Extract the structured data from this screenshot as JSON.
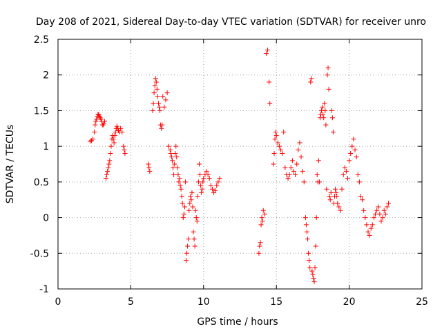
{
  "chart_data": {
    "type": "scatter",
    "title": "Day 208 of 2021, Sidereal Day-to-day VTEC variation (SDTVAR) for receiver unro",
    "xlabel": "GPS time / hours",
    "ylabel": "SDTVAR / TECUs",
    "xlim": [
      0,
      25
    ],
    "ylim": [
      -1,
      2.5
    ],
    "xticks": [
      0,
      5,
      10,
      15,
      20,
      25
    ],
    "xtick_labels": [
      "0",
      "5",
      "10",
      "15",
      "20",
      "25"
    ],
    "yticks": [
      -1,
      -0.5,
      0,
      0.5,
      1,
      1.5,
      2,
      2.5
    ],
    "ytick_labels": [
      "-1",
      "-0.5",
      "0",
      "0.5",
      "1",
      "1.5",
      "2",
      "2.5"
    ],
    "grid": true,
    "marker": "plus",
    "color": "#ff0000",
    "series": [
      {
        "name": "SDTVAR",
        "x": [
          2.2,
          2.3,
          2.4,
          2.5,
          2.55,
          2.6,
          2.65,
          2.7,
          2.75,
          2.8,
          2.85,
          2.9,
          2.95,
          3.0,
          3.05,
          3.1,
          3.15,
          3.2,
          3.3,
          3.35,
          3.4,
          3.45,
          3.5,
          3.55,
          3.6,
          3.65,
          3.7,
          3.75,
          3.8,
          3.85,
          3.9,
          3.95,
          4.0,
          4.05,
          4.1,
          4.15,
          4.2,
          4.3,
          4.4,
          4.5,
          4.55,
          4.6,
          6.2,
          6.25,
          6.3,
          6.5,
          6.55,
          6.6,
          6.65,
          6.7,
          6.75,
          6.8,
          6.85,
          6.9,
          6.95,
          7.0,
          7.05,
          7.1,
          7.15,
          7.2,
          7.3,
          7.4,
          7.5,
          7.6,
          7.7,
          7.75,
          7.8,
          7.85,
          7.9,
          7.95,
          8.0,
          8.05,
          8.1,
          8.15,
          8.2,
          8.25,
          8.3,
          8.35,
          8.4,
          8.45,
          8.5,
          8.55,
          8.6,
          8.65,
          8.7,
          8.75,
          8.8,
          8.85,
          8.9,
          8.95,
          9.0,
          9.05,
          9.1,
          9.15,
          9.2,
          9.25,
          9.3,
          9.35,
          9.4,
          9.45,
          9.5,
          9.55,
          9.6,
          9.65,
          9.7,
          9.75,
          9.8,
          9.85,
          9.9,
          9.95,
          10.0,
          10.1,
          10.2,
          10.3,
          10.4,
          10.5,
          10.6,
          10.7,
          10.8,
          10.9,
          11.0,
          11.1,
          13.8,
          13.85,
          13.9,
          13.95,
          14.0,
          14.05,
          14.1,
          14.2,
          14.3,
          14.4,
          14.5,
          14.55,
          14.8,
          14.85,
          14.9,
          14.95,
          15.0,
          15.1,
          15.2,
          15.3,
          15.4,
          15.5,
          15.6,
          15.7,
          15.8,
          15.9,
          16.0,
          16.1,
          16.2,
          16.3,
          16.4,
          16.5,
          16.6,
          16.7,
          16.8,
          16.9,
          17.0,
          17.05,
          17.1,
          17.15,
          17.2,
          17.25,
          17.3,
          17.35,
          17.4,
          17.45,
          17.5,
          17.55,
          17.6,
          17.65,
          17.7,
          17.75,
          17.8,
          17.85,
          17.9,
          17.95,
          18.0,
          18.05,
          18.1,
          18.15,
          18.2,
          18.25,
          18.3,
          18.35,
          18.4,
          18.45,
          18.5,
          18.55,
          18.6,
          18.65,
          18.7,
          18.75,
          18.8,
          18.85,
          18.9,
          18.95,
          19.0,
          19.05,
          19.1,
          19.15,
          19.2,
          19.3,
          19.4,
          19.5,
          19.6,
          19.7,
          19.8,
          19.9,
          20.0,
          20.1,
          20.2,
          20.3,
          20.4,
          20.5,
          20.6,
          20.7,
          20.8,
          20.9,
          21.0,
          21.1,
          21.2,
          21.3,
          21.4,
          21.5,
          21.6,
          21.7,
          21.8,
          21.9,
          22.0,
          22.1,
          22.2,
          22.3,
          22.4,
          22.5,
          22.6,
          22.7
        ],
        "y": [
          1.07,
          1.08,
          1.1,
          1.2,
          1.3,
          1.35,
          1.38,
          1.42,
          1.45,
          1.44,
          1.42,
          1.4,
          1.38,
          1.35,
          1.3,
          1.3,
          1.32,
          1.35,
          0.55,
          0.6,
          0.65,
          0.7,
          0.75,
          0.8,
          0.9,
          1.0,
          1.1,
          1.15,
          1.1,
          1.05,
          1.15,
          1.2,
          1.25,
          1.28,
          1.25,
          1.22,
          1.2,
          1.25,
          1.2,
          1.0,
          0.95,
          0.9,
          0.75,
          0.7,
          0.65,
          1.5,
          1.6,
          1.75,
          1.85,
          1.95,
          1.9,
          1.8,
          1.7,
          1.6,
          1.55,
          1.5,
          1.3,
          1.25,
          1.3,
          1.7,
          1.55,
          1.65,
          1.75,
          1.0,
          0.95,
          0.9,
          0.85,
          0.8,
          0.7,
          0.6,
          0.75,
          0.9,
          1.0,
          0.85,
          0.7,
          0.6,
          0.5,
          0.55,
          0.45,
          0.4,
          0.3,
          0.2,
          0.0,
          0.05,
          0.15,
          0.5,
          -0.6,
          -0.5,
          -0.4,
          -0.3,
          0.1,
          0.2,
          0.3,
          0.25,
          0.35,
          0.15,
          -0.2,
          -0.3,
          -0.4,
          0.1,
          0.0,
          -0.05,
          0.3,
          0.5,
          0.75,
          0.6,
          0.45,
          0.35,
          0.4,
          0.5,
          0.55,
          0.6,
          0.65,
          0.6,
          0.55,
          0.45,
          0.4,
          0.35,
          0.38,
          0.45,
          0.5,
          0.55,
          -0.5,
          -0.4,
          -0.35,
          -0.1,
          0.0,
          -0.05,
          0.1,
          0.05,
          2.3,
          2.35,
          1.9,
          1.6,
          0.75,
          0.9,
          1.1,
          1.2,
          1.15,
          1.05,
          1.0,
          0.95,
          0.9,
          1.2,
          0.7,
          0.6,
          0.55,
          0.6,
          0.7,
          0.8,
          0.65,
          0.6,
          0.75,
          0.95,
          1.05,
          0.85,
          0.65,
          0.5,
          0.0,
          -0.1,
          -0.2,
          -0.3,
          -0.5,
          -0.6,
          -0.7,
          1.9,
          1.95,
          -0.75,
          -0.8,
          -0.85,
          -0.9,
          -0.7,
          -0.4,
          0.0,
          0.6,
          0.5,
          0.8,
          0.5,
          1.4,
          1.45,
          1.5,
          1.55,
          1.45,
          1.4,
          1.6,
          1.5,
          1.3,
          0.4,
          2.0,
          2.1,
          1.8,
          0.3,
          0.25,
          0.35,
          1.5,
          1.4,
          1.2,
          0.2,
          0.3,
          0.4,
          0.35,
          0.3,
          0.2,
          0.15,
          0.1,
          0.4,
          0.6,
          0.7,
          0.65,
          0.55,
          0.8,
          0.9,
          1.0,
          1.1,
          0.95,
          0.85,
          0.6,
          0.5,
          0.3,
          0.25,
          0.1,
          0.0,
          -0.1,
          -0.2,
          -0.25,
          -0.15,
          -0.1,
          0.0,
          0.05,
          0.1,
          0.15,
          0.05,
          -0.05,
          0.0,
          0.1,
          0.05,
          0.15,
          0.2
        ]
      }
    ]
  }
}
